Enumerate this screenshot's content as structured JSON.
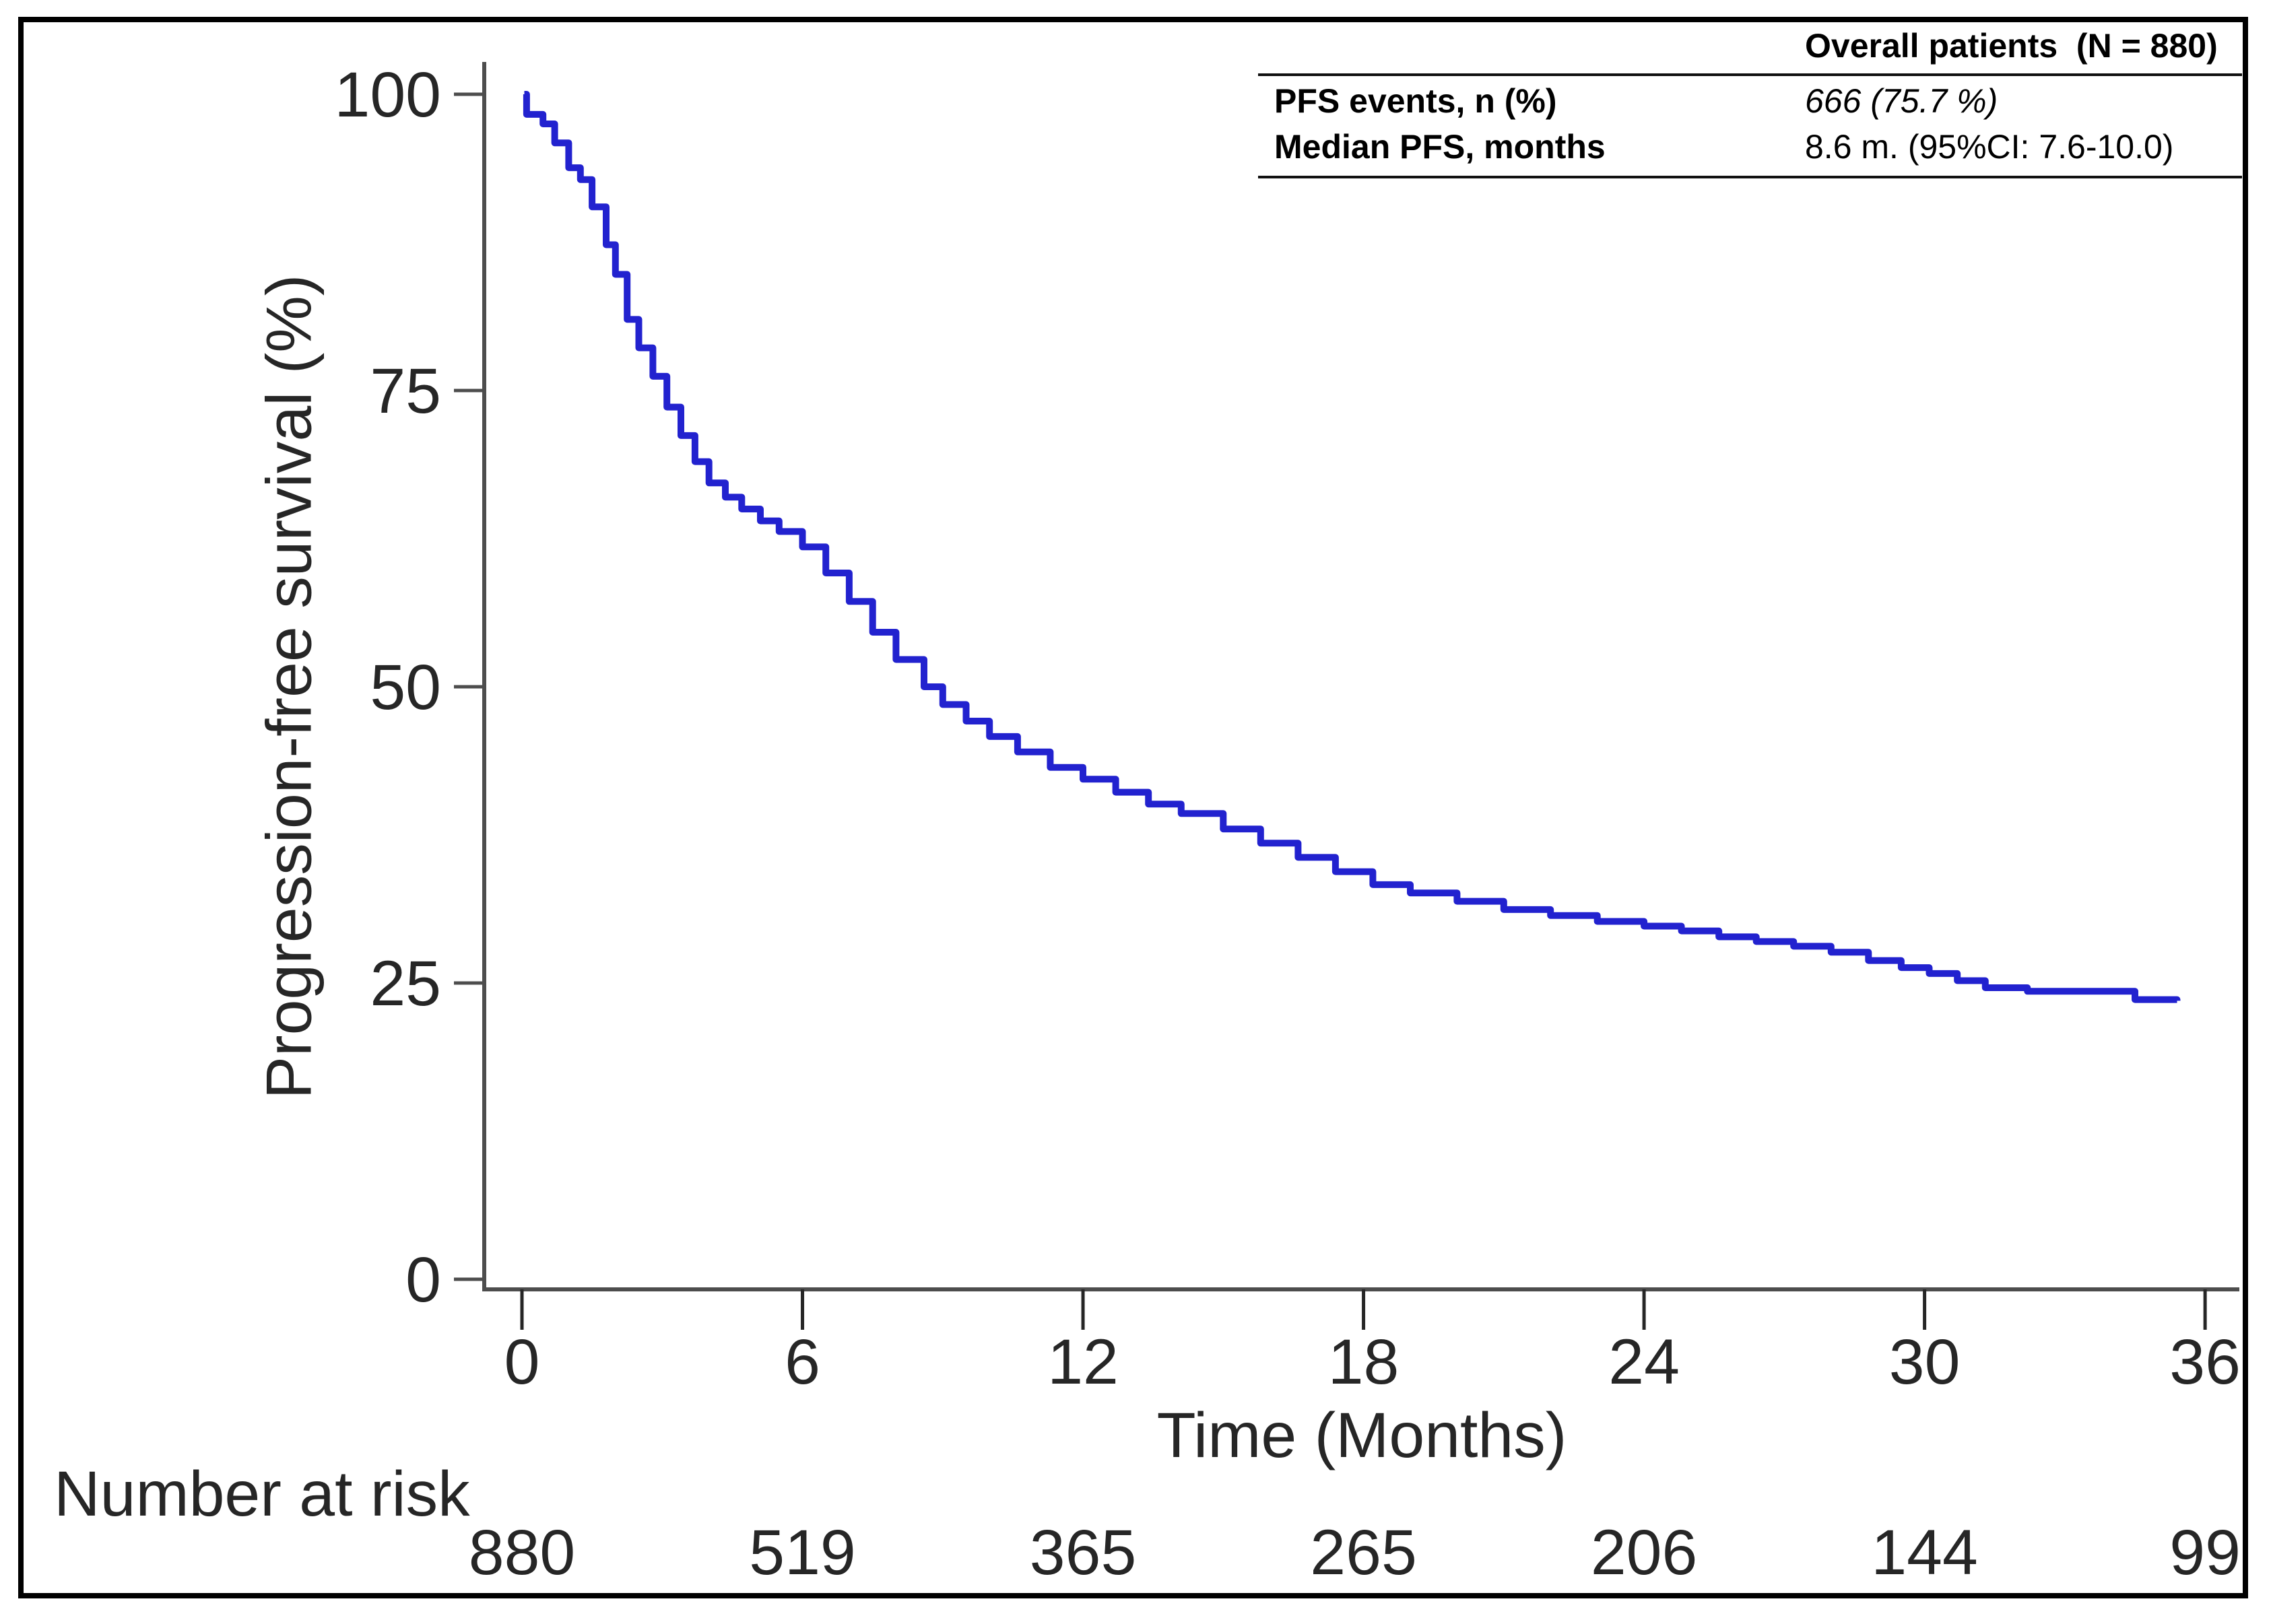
{
  "chart_data": {
    "type": "line",
    "subtype": "kaplan-meier-step",
    "title": "",
    "xlabel": "Time (Months)",
    "ylabel": "Progression-free survival (%)",
    "x_ticks": [
      0,
      6,
      12,
      18,
      24,
      30,
      36
    ],
    "y_ticks": [
      0,
      25,
      50,
      75,
      100
    ],
    "xlim": [
      0,
      36.8
    ],
    "ylim": [
      0,
      100
    ],
    "grid": false,
    "curve_color": "#2222cf",
    "axis_color": "#4d4d4d",
    "series": [
      {
        "name": "Overall patients",
        "step": true,
        "points": [
          [
            0.05,
            100
          ],
          [
            0.1,
            98.3
          ],
          [
            0.45,
            97.5
          ],
          [
            0.7,
            95.9
          ],
          [
            1.0,
            93.8
          ],
          [
            1.25,
            92.8
          ],
          [
            1.5,
            90.5
          ],
          [
            1.8,
            87.3
          ],
          [
            2.0,
            84.8
          ],
          [
            2.25,
            81.0
          ],
          [
            2.5,
            78.6
          ],
          [
            2.8,
            76.2
          ],
          [
            3.1,
            73.6
          ],
          [
            3.4,
            71.2
          ],
          [
            3.7,
            69.0
          ],
          [
            4.0,
            67.2
          ],
          [
            4.35,
            66.0
          ],
          [
            4.7,
            65.0
          ],
          [
            5.1,
            64.0
          ],
          [
            5.5,
            63.1
          ],
          [
            6.0,
            61.8
          ],
          [
            6.5,
            59.6
          ],
          [
            7.0,
            57.2
          ],
          [
            7.5,
            54.6
          ],
          [
            8.0,
            52.3
          ],
          [
            8.6,
            50.0
          ],
          [
            9.0,
            48.5
          ],
          [
            9.5,
            47.1
          ],
          [
            10.0,
            45.8
          ],
          [
            10.6,
            44.5
          ],
          [
            11.3,
            43.2
          ],
          [
            12.0,
            42.2
          ],
          [
            12.7,
            41.1
          ],
          [
            13.4,
            40.1
          ],
          [
            14.1,
            39.3
          ],
          [
            15.0,
            38.0
          ],
          [
            15.8,
            36.8
          ],
          [
            16.6,
            35.6
          ],
          [
            17.4,
            34.4
          ],
          [
            18.2,
            33.3
          ],
          [
            19.0,
            32.6
          ],
          [
            20.0,
            31.9
          ],
          [
            21.0,
            31.2
          ],
          [
            22.0,
            30.7
          ],
          [
            23.0,
            30.2
          ],
          [
            24.0,
            29.8
          ],
          [
            24.8,
            29.4
          ],
          [
            25.6,
            28.9
          ],
          [
            26.4,
            28.5
          ],
          [
            27.2,
            28.1
          ],
          [
            28.0,
            27.6
          ],
          [
            28.8,
            26.9
          ],
          [
            29.5,
            26.3
          ],
          [
            30.1,
            25.8
          ],
          [
            30.7,
            25.2
          ],
          [
            31.3,
            24.6
          ],
          [
            32.2,
            24.3
          ],
          [
            34.5,
            23.6
          ],
          [
            35.4,
            23.5
          ]
        ]
      }
    ],
    "number_at_risk": {
      "label": "Number at risk",
      "times": [
        0,
        6,
        12,
        18,
        24,
        30,
        36
      ],
      "counts": [
        880,
        519,
        365,
        265,
        206,
        144,
        99
      ]
    },
    "stats_table": {
      "header": "Overall patients  (N = 880)",
      "rows": [
        {
          "label": "PFS events, n (%)",
          "value": "666 (75.7 %)",
          "italic": true
        },
        {
          "label": "Median PFS, months",
          "value": "8.6 m. (95%CI: 7.6-10.0)",
          "italic": false
        }
      ]
    }
  }
}
